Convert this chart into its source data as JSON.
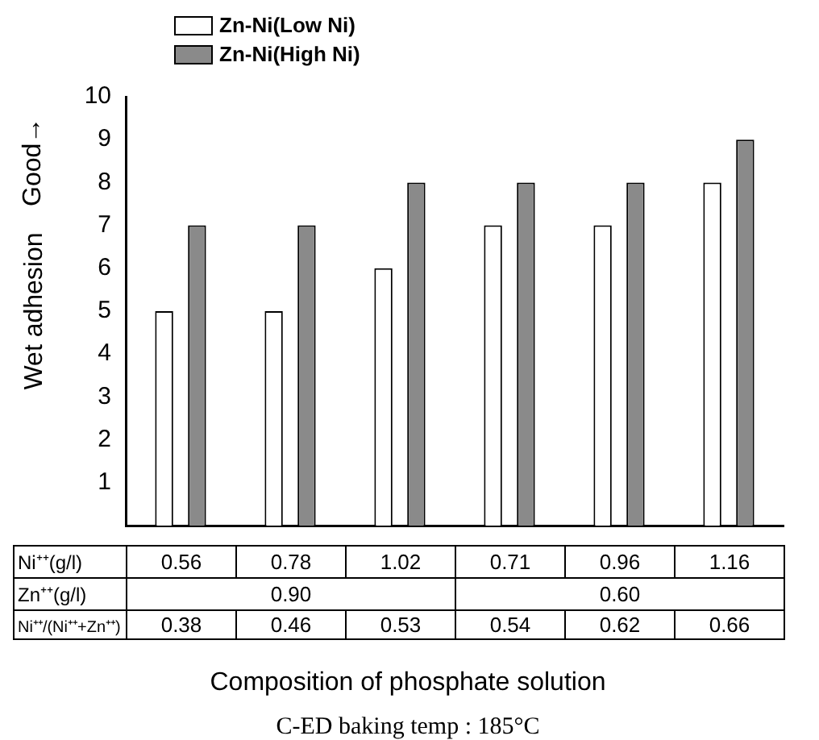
{
  "chart_data": {
    "type": "bar",
    "ylabel": "Wet adhesion",
    "xlabel": "Composition of phosphate solution",
    "categories": [
      "0.56",
      "0.78",
      "1.02",
      "0.71",
      "0.96",
      "1.16"
    ],
    "series": [
      {
        "name": "Zn-Ni(Low Ni)",
        "color": "#ffffff",
        "values": [
          5,
          5,
          6,
          7,
          7,
          8
        ]
      },
      {
        "name": "Zn-Ni(High Ni)",
        "color": "#8a8a8a",
        "values": [
          7,
          7,
          8,
          8,
          8,
          9
        ]
      }
    ],
    "ylim": [
      0,
      10
    ],
    "yticks": [
      1,
      2,
      3,
      4,
      5,
      6,
      7,
      8,
      9,
      10
    ],
    "grid": false,
    "legend": "top left",
    "annotations": [
      "Good→",
      "Ni⁺⁺(g/l)",
      "Zn⁺⁺(g/l)",
      "0.90",
      "0.60",
      "Ni⁺⁺/(Ni⁺⁺+Zn⁺⁺)",
      "0.38",
      "0.46",
      "0.53",
      "0.54",
      "0.62",
      "0.66",
      "C-ED baking temp : 185°C"
    ]
  }
}
